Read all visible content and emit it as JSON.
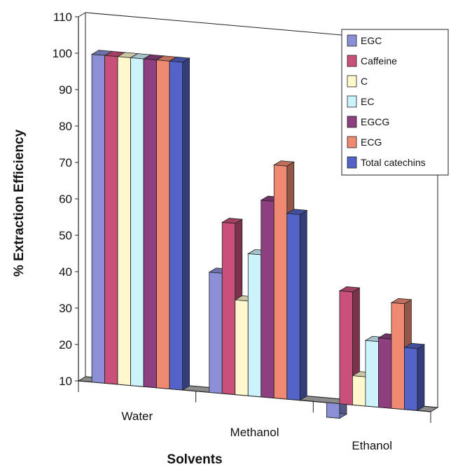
{
  "chart_data": {
    "type": "bar",
    "style": "3d-clustered-column",
    "title": "",
    "xlabel": "Solvents",
    "ylabel": "% Extraction Efficiency",
    "ylim": [
      10,
      110
    ],
    "yticks": [
      10,
      20,
      30,
      40,
      50,
      60,
      70,
      80,
      90,
      100,
      110
    ],
    "grid": false,
    "legend_position": "top-right",
    "categories": [
      "Water",
      "Methanol",
      "Ethanol"
    ],
    "series": [
      {
        "name": "EGC",
        "color": "#8a8fd6",
        "values": [
          100,
          43,
          6
        ]
      },
      {
        "name": "Caffeine",
        "color": "#c9507a",
        "values": [
          100,
          57,
          41
        ]
      },
      {
        "name": "C",
        "color": "#fff8cc",
        "values": [
          100,
          36,
          18
        ]
      },
      {
        "name": "EC",
        "color": "#ccf2fb",
        "values": [
          100,
          49,
          28
        ]
      },
      {
        "name": "EGCG",
        "color": "#8d3f80",
        "values": [
          100,
          64,
          29
        ]
      },
      {
        "name": "ECG",
        "color": "#ee8a72",
        "values": [
          100,
          74,
          39
        ]
      },
      {
        "name": "Total catechins",
        "color": "#5363c7",
        "values": [
          100,
          61,
          27
        ]
      }
    ]
  }
}
